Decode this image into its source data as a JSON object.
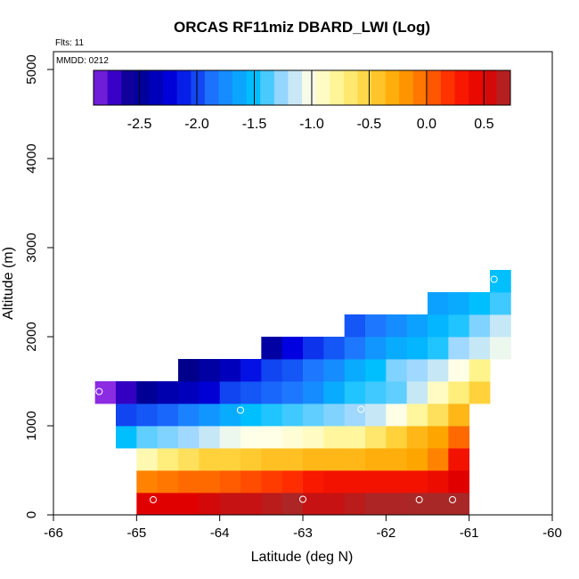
{
  "chart_data": {
    "type": "heatmap",
    "title": "ORCAS RF11miz DBARD_LWI (Log)",
    "xlabel": "Latitude (deg N)",
    "ylabel": "Altitude (m)",
    "xlim": [
      -66,
      -60
    ],
    "ylim": [
      0,
      5200
    ],
    "xticks": [
      -66,
      -65,
      -64,
      -63,
      -62,
      -61,
      -60
    ],
    "yticks": [
      0,
      1000,
      2000,
      3000,
      4000,
      5000
    ],
    "xtick_labels": [
      "-66",
      "-65",
      "-64",
      "-63",
      "-62",
      "-61",
      "-60"
    ],
    "ytick_labels": [
      "0",
      "1000",
      "2000",
      "3000",
      "4000",
      "5000"
    ],
    "annotations": [
      "Flts: 11",
      "MMDD: 0212"
    ],
    "grid": false,
    "colorbar": {
      "vmin": -2.9,
      "vmax": 0.73,
      "ticks": [
        -2.5,
        -2.0,
        -1.5,
        -1.0,
        -0.5,
        0.0,
        0.5
      ],
      "tick_labels": [
        "-2.5",
        "-2.0",
        "-1.5",
        "-1.0",
        "-0.5",
        "0.0",
        "0.5"
      ],
      "stops": [
        {
          "v": -2.9,
          "c": "#8B2BE2"
        },
        {
          "v": -2.72,
          "c": "#3A00C8"
        },
        {
          "v": -2.55,
          "c": "#00008B"
        },
        {
          "v": -2.2,
          "c": "#0000E0"
        },
        {
          "v": -1.85,
          "c": "#1E78FF"
        },
        {
          "v": -1.5,
          "c": "#00BFFF"
        },
        {
          "v": -1.25,
          "c": "#A0D8FF"
        },
        {
          "v": -1.0,
          "c": "#FFFFE8"
        },
        {
          "v": -0.75,
          "c": "#FFF48C"
        },
        {
          "v": -0.5,
          "c": "#FFD23C"
        },
        {
          "v": -0.25,
          "c": "#FFA500"
        },
        {
          "v": 0.0,
          "c": "#FF6A00"
        },
        {
          "v": 0.25,
          "c": "#FF1E00"
        },
        {
          "v": 0.5,
          "c": "#E00000"
        },
        {
          "v": 0.73,
          "c": "#A52A2A"
        }
      ]
    },
    "cell_size": {
      "lat": 0.25,
      "alt": 250
    },
    "rows": [
      {
        "alt": 0,
        "lat_start": -65.0,
        "values": [
          0.5,
          0.5,
          0.5,
          0.55,
          0.6,
          0.6,
          0.65,
          0.7,
          0.6,
          0.6,
          0.65,
          0.7,
          0.7,
          0.72,
          0.72,
          0.72
        ]
      },
      {
        "alt": 250,
        "lat_start": -65.0,
        "values": [
          -0.1,
          -0.05,
          0.0,
          0.0,
          0.05,
          0.1,
          0.15,
          0.2,
          0.3,
          0.35,
          0.35,
          0.35,
          0.35,
          0.35,
          0.4,
          0.5
        ]
      },
      {
        "alt": 500,
        "lat_start": -65.0,
        "values": [
          -0.85,
          -0.7,
          -0.6,
          -0.5,
          -0.5,
          -0.45,
          -0.4,
          -0.4,
          -0.35,
          -0.35,
          -0.35,
          -0.3,
          -0.3,
          -0.25,
          -0.1,
          0.35
        ]
      },
      {
        "alt": 750,
        "lat_start": -65.25,
        "values": [
          -1.5,
          -1.35,
          -1.3,
          -1.25,
          -1.15,
          -1.05,
          -1.0,
          -1.0,
          -0.95,
          -0.9,
          -0.8,
          -0.8,
          -0.65,
          -0.5,
          -0.35,
          -0.25,
          0.0
        ]
      },
      {
        "alt": 1000,
        "lat_start": -65.25,
        "values": [
          -2.0,
          -1.95,
          -1.9,
          -1.8,
          -1.7,
          -1.6,
          -1.5,
          -1.45,
          -1.4,
          -1.35,
          -1.3,
          -1.25,
          -1.15,
          -1.0,
          -0.8,
          -0.6,
          -0.35
        ]
      },
      {
        "alt": 1250,
        "lat_start": -65.5,
        "values": [
          -2.9,
          -2.7,
          -2.5,
          -2.4,
          -2.35,
          -2.25,
          -2.0,
          -1.95,
          -1.9,
          -1.85,
          -1.75,
          -1.6,
          -1.45,
          -1.4,
          -1.35,
          -1.15,
          -0.9,
          -0.7,
          -0.5
        ]
      },
      {
        "alt": 1500,
        "lat_start": -64.5,
        "values": [
          -2.55,
          -2.45,
          -2.35,
          -2.15,
          -2.0,
          -1.95,
          -1.85,
          -1.75,
          -1.6,
          -1.5,
          -1.3,
          -1.25,
          -1.15,
          -1.0,
          -0.75
        ]
      },
      {
        "alt": 1750,
        "lat_start": -63.5,
        "values": [
          -2.45,
          -2.2,
          -2.05,
          -1.95,
          -1.85,
          -1.7,
          -1.6,
          -1.55,
          -1.45,
          -1.25,
          -1.15,
          -1.05
        ]
      },
      {
        "alt": 2000,
        "lat_start": -62.5,
        "values": [
          -1.95,
          -1.85,
          -1.75,
          -1.65,
          -1.55,
          -1.45,
          -1.3,
          -1.15
        ]
      },
      {
        "alt": 2250,
        "lat_start": -61.5,
        "values": [
          -1.65,
          -1.6,
          -1.5,
          -1.4
        ]
      },
      {
        "alt": 2500,
        "lat_start": -60.75,
        "values": [
          -1.5
        ]
      }
    ],
    "circles": [
      {
        "lat": -64.8,
        "alt": 170
      },
      {
        "lat": -63.0,
        "alt": 175
      },
      {
        "lat": -61.6,
        "alt": 170
      },
      {
        "lat": -61.2,
        "alt": 170
      },
      {
        "lat": -65.45,
        "alt": 1385
      },
      {
        "lat": -63.75,
        "alt": 1175
      },
      {
        "lat": -62.3,
        "alt": 1185
      },
      {
        "lat": -60.7,
        "alt": 2645
      }
    ]
  }
}
